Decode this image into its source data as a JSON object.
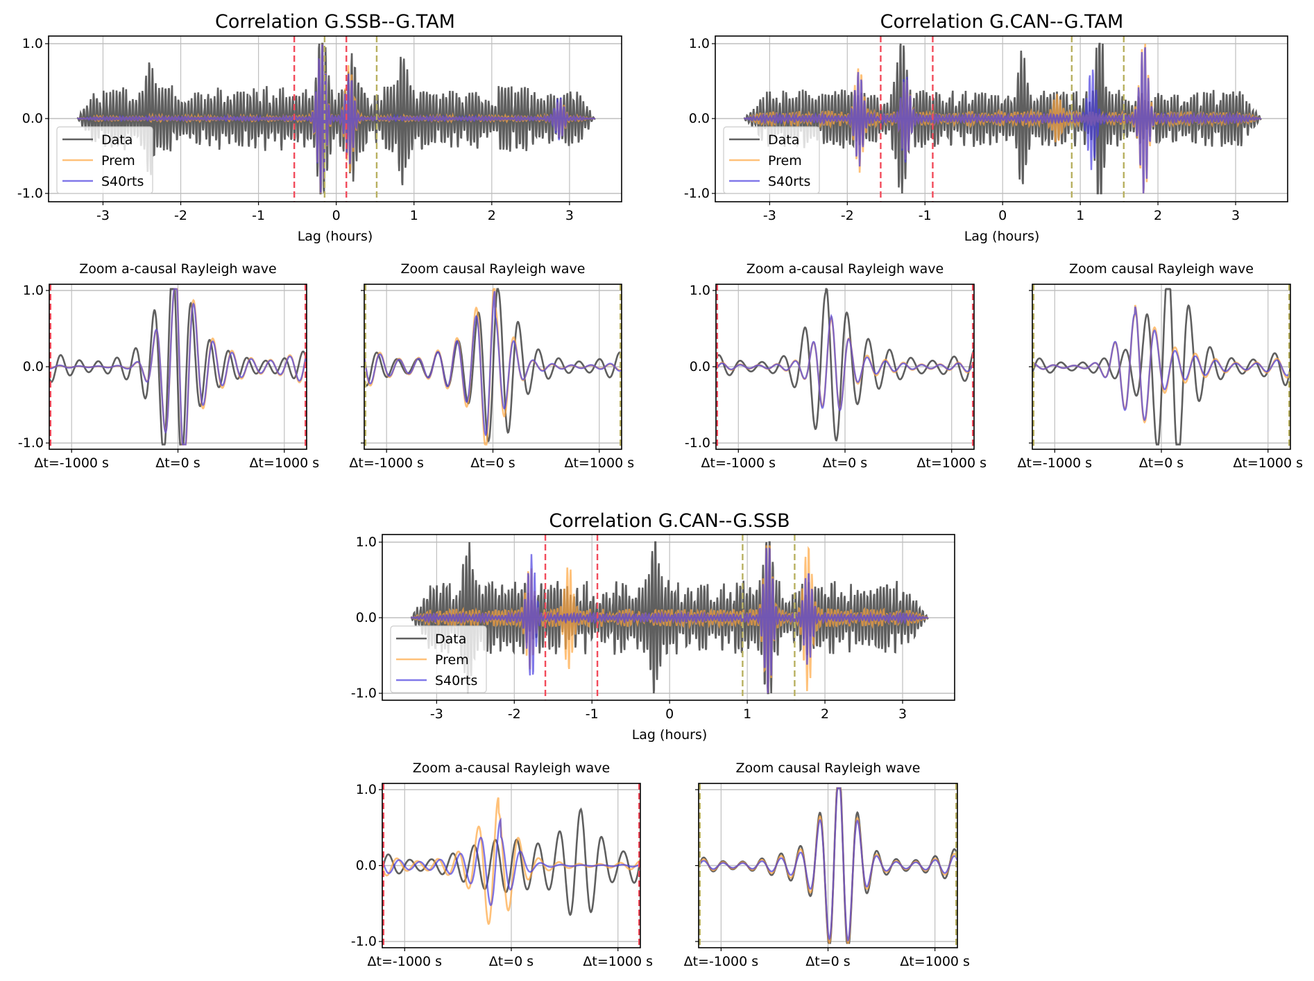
{
  "figure": "Cross-correlation comparison of Data vs Prem vs S40rts",
  "legend": [
    "Data",
    "Prem",
    "S40rts"
  ],
  "colors": {
    "Data": "#3c3c3c",
    "Prem": "#ffa640",
    "S40rts": "#4a3ee0",
    "acausal_window": "#f24a5a",
    "causal_window": "#b8b060",
    "grid": "#bfbfbf"
  },
  "chart_data": [
    {
      "id": "ssb_tam",
      "type": "line",
      "title": "Correlation G.SSB--G.TAM",
      "xlabel": "Lag (hours)",
      "ylabel": "",
      "xlim": [
        -3.7,
        3.67
      ],
      "ylim": [
        -1.1,
        1.1
      ],
      "xticks": [
        -3,
        -2,
        -1,
        0,
        1,
        2,
        3
      ],
      "xtick_labels": [
        "-3",
        "-2",
        "-1",
        "0",
        "1",
        "2",
        "3"
      ],
      "yticks": [
        1.0,
        0.0,
        -1.0
      ],
      "ytick_labels": [
        "1.0",
        "0.0",
        "-1.0"
      ],
      "grid": true,
      "legend_position": "lower-left",
      "signal_extent": [
        -3.33,
        3.33
      ],
      "acausal_window": [
        -0.54,
        0.13
      ],
      "causal_window": [
        -0.15,
        0.52
      ],
      "series": [
        {
          "name": "Data",
          "noise_amp": 0.45,
          "packets": [
            {
              "t": -0.19,
              "a": 0.95
            },
            {
              "t": 0.2,
              "a": 0.6
            },
            {
              "t": -2.4,
              "a": 0.5
            },
            {
              "t": 0.85,
              "a": 0.6
            }
          ]
        },
        {
          "name": "Prem",
          "noise_amp": 0.04,
          "packets": [
            {
              "t": -0.19,
              "a": 1.0
            },
            {
              "t": 0.17,
              "a": 0.7
            },
            {
              "t": 2.88,
              "a": 0.25
            }
          ]
        },
        {
          "name": "S40rts",
          "noise_amp": 0.03,
          "packets": [
            {
              "t": -0.19,
              "a": 1.0
            },
            {
              "t": 0.17,
              "a": 0.6
            },
            {
              "t": 2.87,
              "a": 0.28
            }
          ]
        }
      ],
      "zooms": [
        {
          "title": "Zoom a-causal Rayleigh wave",
          "window": "acausal",
          "xlim_s": [
            -1210,
            1210
          ],
          "xticks_s": [
            -1000,
            0,
            1000
          ],
          "xtick_labels": [
            "Δt=-1000 s",
            "Δt=0 s",
            "Δt=1000 s"
          ],
          "ytick_labels": [
            "1.0",
            "0.0",
            "-1.0"
          ],
          "show_ylabels": true,
          "series": [
            {
              "name": "Data",
              "peak_s": -50,
              "amp": 1.0,
              "pre_amp": 0.35,
              "post_amp": 0.4,
              "period_s": 175
            },
            {
              "name": "Prem",
              "peak_s": -30,
              "amp": 1.0,
              "pre_amp": 0.03,
              "post_amp": 0.45,
              "period_s": 180
            },
            {
              "name": "S40rts",
              "peak_s": -30,
              "amp": 1.0,
              "pre_amp": 0.04,
              "post_amp": 0.4,
              "period_s": 180
            }
          ]
        },
        {
          "title": "Zoom causal Rayleigh wave",
          "window": "causal",
          "xlim_s": [
            -1210,
            1210
          ],
          "xticks_s": [
            -1000,
            0,
            1000
          ],
          "xtick_labels": [
            "Δt=-1000 s",
            "Δt=0 s",
            "Δt=1000 s"
          ],
          "ytick_labels": [
            "",
            "",
            ""
          ],
          "show_ylabels": false,
          "series": [
            {
              "name": "Data",
              "peak_s": 50,
              "amp": 0.65,
              "pre_amp": 0.45,
              "post_amp": 0.35,
              "period_s": 190
            },
            {
              "name": "Prem",
              "peak_s": 20,
              "amp": 0.7,
              "pre_amp": 0.5,
              "post_amp": 0.08,
              "period_s": 180
            },
            {
              "name": "S40rts",
              "peak_s": 20,
              "amp": 0.55,
              "pre_amp": 0.45,
              "post_amp": 0.1,
              "period_s": 180
            }
          ]
        }
      ]
    },
    {
      "id": "can_tam",
      "type": "line",
      "title": "Correlation G.CAN--G.TAM",
      "xlabel": "Lag (hours)",
      "ylabel": "",
      "xlim": [
        -3.7,
        3.67
      ],
      "ylim": [
        -1.1,
        1.1
      ],
      "xticks": [
        -3,
        -2,
        -1,
        0,
        1,
        2,
        3
      ],
      "xtick_labels": [
        "-3",
        "-2",
        "-1",
        "0",
        "1",
        "2",
        "3"
      ],
      "yticks": [
        1.0,
        0.0,
        -1.0
      ],
      "ytick_labels": [
        "1.0",
        "0.0",
        "-1.0"
      ],
      "grid": true,
      "legend_position": "lower-left",
      "signal_extent": [
        -3.33,
        3.33
      ],
      "acausal_window": [
        -1.57,
        -0.9
      ],
      "causal_window": [
        0.89,
        1.56
      ],
      "series": [
        {
          "name": "Data",
          "noise_amp": 0.4,
          "packets": [
            {
              "t": -1.3,
              "a": 0.7
            },
            {
              "t": 1.25,
              "a": 1.0
            },
            {
              "t": 0.25,
              "a": 0.65
            }
          ]
        },
        {
          "name": "Prem",
          "noise_amp": 0.1,
          "packets": [
            {
              "t": -1.85,
              "a": 0.65
            },
            {
              "t": -1.25,
              "a": 0.5
            },
            {
              "t": 1.82,
              "a": 1.0
            },
            {
              "t": 0.7,
              "a": 0.25
            }
          ]
        },
        {
          "name": "S40rts",
          "noise_amp": 0.06,
          "packets": [
            {
              "t": -1.85,
              "a": 0.6
            },
            {
              "t": -1.25,
              "a": 0.55
            },
            {
              "t": 1.15,
              "a": 0.65
            },
            {
              "t": 1.82,
              "a": 1.0
            }
          ]
        }
      ],
      "zooms": [
        {
          "title": "Zoom a-causal Rayleigh wave",
          "window": "acausal",
          "xlim_s": [
            -1210,
            1210
          ],
          "xticks_s": [
            -1000,
            0,
            1000
          ],
          "xtick_labels": [
            "Δt=-1000 s",
            "Δt=0 s",
            "Δt=1000 s"
          ],
          "ytick_labels": [
            "1.0",
            "0.0",
            "-1.0"
          ],
          "show_ylabels": true,
          "series": [
            {
              "name": "Data",
              "peak_s": -180,
              "amp": 0.7,
              "pre_amp": 0.3,
              "post_amp": 0.4,
              "period_s": 200
            },
            {
              "name": "Prem",
              "peak_s": -130,
              "amp": 0.5,
              "pre_amp": 0.12,
              "post_amp": 0.15,
              "period_s": 170
            },
            {
              "name": "S40rts",
              "peak_s": -130,
              "amp": 0.55,
              "pre_amp": 0.1,
              "post_amp": 0.12,
              "period_s": 170
            }
          ]
        },
        {
          "title": "Zoom causal Rayleigh wave",
          "window": "causal",
          "xlim_s": [
            -1210,
            1210
          ],
          "xticks_s": [
            -1000,
            0,
            1000
          ],
          "xtick_labels": [
            "Δt=-1000 s",
            "Δt=0 s",
            "Δt=1000 s"
          ],
          "ytick_labels": [
            "",
            "",
            ""
          ],
          "show_ylabels": false,
          "series": [
            {
              "name": "Data",
              "peak_s": 60,
              "amp": 1.0,
              "pre_amp": 0.25,
              "post_amp": 0.45,
              "period_s": 200
            },
            {
              "name": "Prem",
              "peak_s": -250,
              "amp": 0.6,
              "pre_amp": 0.08,
              "post_amp": 0.25,
              "period_s": 190
            },
            {
              "name": "S40rts",
              "peak_s": -250,
              "amp": 0.62,
              "pre_amp": 0.08,
              "post_amp": 0.2,
              "period_s": 190
            }
          ]
        }
      ]
    },
    {
      "id": "can_ssb",
      "type": "line",
      "title": "Correlation G.CAN--G.SSB",
      "xlabel": "Lag (hours)",
      "ylabel": "",
      "xlim": [
        -3.7,
        3.67
      ],
      "ylim": [
        -1.1,
        1.1
      ],
      "xticks": [
        -3,
        -2,
        -1,
        0,
        1,
        2,
        3
      ],
      "xtick_labels": [
        "-3",
        "-2",
        "-1",
        "0",
        "1",
        "2",
        "3"
      ],
      "yticks": [
        1.0,
        0.0,
        -1.0
      ],
      "ytick_labels": [
        "1.0",
        "0.0",
        "-1.0"
      ],
      "grid": true,
      "legend_position": "lower-left",
      "signal_extent": [
        -3.33,
        3.33
      ],
      "acausal_window": [
        -1.6,
        -0.93
      ],
      "causal_window": [
        0.94,
        1.61
      ],
      "series": [
        {
          "name": "Data",
          "noise_amp": 0.5,
          "packets": [
            {
              "t": 1.27,
              "a": 1.0
            },
            {
              "t": -2.6,
              "a": 0.6
            },
            {
              "t": -0.2,
              "a": 0.7
            }
          ]
        },
        {
          "name": "Prem",
          "noise_amp": 0.12,
          "packets": [
            {
              "t": -1.8,
              "a": 0.6
            },
            {
              "t": -1.3,
              "a": 0.6
            },
            {
              "t": 1.27,
              "a": 1.0
            },
            {
              "t": 1.78,
              "a": 0.9
            }
          ]
        },
        {
          "name": "S40rts",
          "noise_amp": 0.06,
          "packets": [
            {
              "t": -1.78,
              "a": 0.8
            },
            {
              "t": 1.27,
              "a": 1.0
            },
            {
              "t": 1.78,
              "a": 0.6
            }
          ]
        }
      ],
      "zooms": [
        {
          "title": "Zoom a-causal Rayleigh wave",
          "window": "acausal",
          "xlim_s": [
            -1210,
            1210
          ],
          "xticks_s": [
            -1000,
            0,
            1000
          ],
          "xtick_labels": [
            "Δt=-1000 s",
            "Δt=0 s",
            "Δt=1000 s"
          ],
          "ytick_labels": [
            "1.0",
            "0.0",
            "-1.0"
          ],
          "show_ylabels": true,
          "series": [
            {
              "name": "Data",
              "peak_s": 650,
              "amp": 0.65,
              "pre_amp": 0.35,
              "post_amp": 0.4,
              "period_s": 200
            },
            {
              "name": "Prem",
              "peak_s": -120,
              "amp": 0.6,
              "pre_amp": 0.3,
              "post_amp": 0.1,
              "period_s": 190
            },
            {
              "name": "S40rts",
              "peak_s": -100,
              "amp": 0.35,
              "pre_amp": 0.25,
              "post_amp": 0.03,
              "period_s": 190
            }
          ]
        },
        {
          "title": "Zoom causal Rayleigh wave",
          "window": "causal",
          "xlim_s": [
            -1210,
            1210
          ],
          "xticks_s": [
            -1000,
            0,
            1000
          ],
          "xtick_labels": [
            "Δt=-1000 s",
            "Δt=0 s",
            "Δt=1000 s"
          ],
          "ytick_labels": [
            "",
            "",
            ""
          ],
          "show_ylabels": false,
          "series": [
            {
              "name": "Data",
              "peak_s": 100,
              "amp": 1.0,
              "pre_amp": 0.25,
              "post_amp": 0.35,
              "period_s": 180
            },
            {
              "name": "Prem",
              "peak_s": 100,
              "amp": 1.0,
              "pre_amp": 0.2,
              "post_amp": 0.25,
              "period_s": 180
            },
            {
              "name": "S40rts",
              "peak_s": 100,
              "amp": 1.0,
              "pre_amp": 0.15,
              "post_amp": 0.2,
              "period_s": 180
            }
          ]
        }
      ]
    }
  ]
}
